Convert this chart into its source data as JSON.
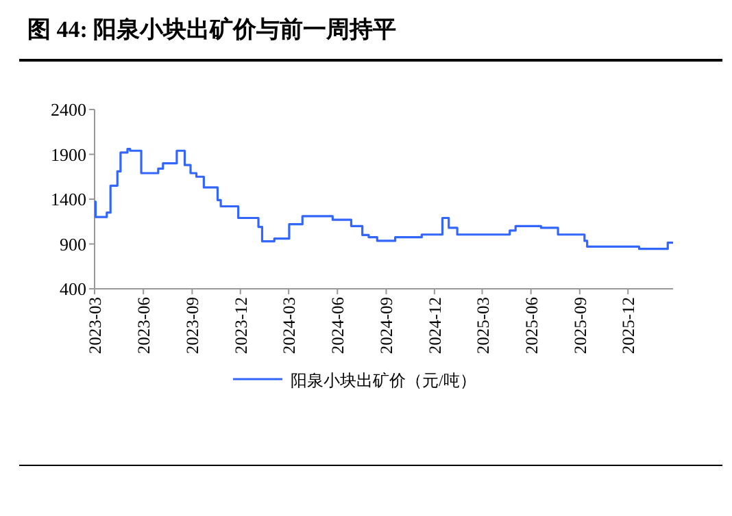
{
  "chart_data": {
    "type": "step",
    "title": "图 44:  阳泉小块出矿价与前一周持平",
    "x": [
      "2023-03-01",
      "2023-03-03",
      "2023-03-24",
      "2023-03-31",
      "2023-04-13",
      "2023-04-19",
      "2023-05-02",
      "2023-05-07",
      "2023-05-28",
      "2023-06-29",
      "2023-07-08",
      "2023-08-03",
      "2023-08-18",
      "2023-08-29",
      "2023-09-09",
      "2023-09-23",
      "2023-10-19",
      "2023-10-25",
      "2023-11-27",
      "2024-01-04",
      "2024-01-11",
      "2024-02-03",
      "2024-03-02",
      "2024-03-27",
      "2024-05-23",
      "2024-06-27",
      "2024-07-18",
      "2024-07-30",
      "2024-08-15",
      "2024-09-18",
      "2024-11-07",
      "2024-12-16",
      "2024-12-28",
      "2025-01-13",
      "2025-04-22",
      "2025-05-03",
      "2025-06-20",
      "2025-07-22",
      "2025-09-10",
      "2025-09-15",
      "2025-12-22",
      "2026-02-14",
      "2026-02-24"
    ],
    "series": [
      {
        "name": "阳泉小块出矿价（元/吨）",
        "color": "#3366ff",
        "values": [
          1370,
          1200,
          1250,
          1550,
          1710,
          1920,
          1960,
          1940,
          1690,
          1740,
          1800,
          1940,
          1780,
          1690,
          1650,
          1530,
          1390,
          1320,
          1190,
          1090,
          930,
          960,
          1120,
          1210,
          1170,
          1100,
          1000,
          975,
          935,
          975,
          1005,
          1190,
          1080,
          1005,
          1050,
          1100,
          1080,
          1005,
          935,
          870,
          845,
          915,
          915
        ]
      }
    ],
    "xlim": [
      "2023-03-01",
      "2026-02-24"
    ],
    "xticks": [
      "2023-03",
      "2023-06",
      "2023-09",
      "2023-12",
      "2024-03",
      "2024-06",
      "2024-09",
      "2024-12",
      "2025-03",
      "2025-06",
      "2025-09",
      "2025-12"
    ],
    "ylim": [
      400,
      2400
    ],
    "yticks": [
      400,
      900,
      1400,
      1900,
      2400
    ],
    "grid": false,
    "legend": "bottom"
  }
}
